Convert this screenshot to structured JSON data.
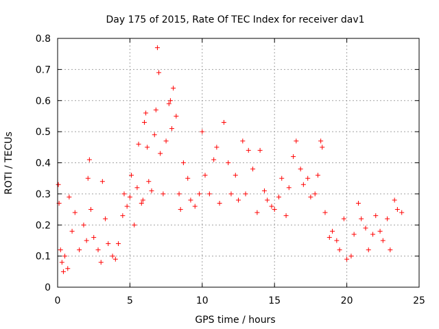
{
  "chart_data": {
    "type": "scatter",
    "title": "Day 175 of 2015, Rate Of TEC Index for receiver dav1",
    "xlabel": "GPS time / hours",
    "ylabel": "ROTI / TECUs",
    "xlim": [
      0,
      25
    ],
    "ylim": [
      0,
      0.8
    ],
    "xticks": [
      "0",
      "5",
      "10",
      "15",
      "20",
      "25"
    ],
    "yticks": [
      "0",
      "0.1",
      "0.2",
      "0.3",
      "0.4",
      "0.5",
      "0.6",
      "0.7",
      "0.8"
    ],
    "grid": true,
    "marker": "+",
    "color": "#ff0000",
    "series": [
      {
        "x": [
          0.05,
          0.1,
          0.2,
          0.3,
          0.4,
          0.5,
          0.7,
          0.8,
          1.0,
          1.2,
          1.5,
          1.8,
          2.0,
          2.1,
          2.2,
          2.3,
          2.5,
          2.8,
          3.0,
          3.1,
          3.3,
          3.5,
          3.8,
          4.0,
          4.2,
          4.5,
          4.6,
          4.8,
          5.0,
          5.1,
          5.3,
          5.5,
          5.6,
          5.8,
          5.9,
          6.0,
          6.1,
          6.2,
          6.3,
          6.5,
          6.7,
          6.8,
          6.9,
          7.0,
          7.1,
          7.3,
          7.5,
          7.7,
          7.8,
          7.9,
          8.0,
          8.2,
          8.4,
          8.5,
          8.7,
          9.0,
          9.2,
          9.5,
          9.8,
          10.0,
          10.2,
          10.5,
          10.8,
          11.0,
          11.2,
          11.5,
          11.8,
          12.0,
          12.3,
          12.5,
          12.8,
          13.0,
          13.2,
          13.5,
          13.8,
          14.0,
          14.3,
          14.5,
          14.8,
          15.0,
          15.3,
          15.5,
          15.8,
          16.0,
          16.3,
          16.5,
          16.8,
          17.0,
          17.3,
          17.5,
          17.8,
          18.0,
          18.2,
          18.3,
          18.5,
          18.8,
          19.0,
          19.3,
          19.5,
          19.8,
          20.0,
          20.3,
          20.5,
          20.8,
          21.0,
          21.3,
          21.5,
          21.8,
          22.0,
          22.3,
          22.5,
          22.8,
          23.0,
          23.3,
          23.5,
          23.8
        ],
        "y": [
          0.33,
          0.27,
          0.12,
          0.08,
          0.05,
          0.1,
          0.06,
          0.29,
          0.18,
          0.24,
          0.12,
          0.2,
          0.15,
          0.35,
          0.41,
          0.25,
          0.16,
          0.12,
          0.08,
          0.34,
          0.22,
          0.14,
          0.1,
          0.09,
          0.14,
          0.23,
          0.3,
          0.26,
          0.29,
          0.36,
          0.2,
          0.32,
          0.46,
          0.27,
          0.28,
          0.53,
          0.56,
          0.45,
          0.34,
          0.31,
          0.49,
          0.57,
          0.77,
          0.69,
          0.43,
          0.3,
          0.47,
          0.59,
          0.6,
          0.51,
          0.64,
          0.55,
          0.3,
          0.25,
          0.4,
          0.35,
          0.28,
          0.26,
          0.3,
          0.5,
          0.36,
          0.3,
          0.41,
          0.45,
          0.27,
          0.53,
          0.4,
          0.3,
          0.36,
          0.28,
          0.47,
          0.3,
          0.44,
          0.38,
          0.24,
          0.44,
          0.31,
          0.28,
          0.26,
          0.25,
          0.29,
          0.35,
          0.23,
          0.32,
          0.42,
          0.47,
          0.38,
          0.33,
          0.35,
          0.29,
          0.3,
          0.36,
          0.47,
          0.45,
          0.24,
          0.16,
          0.18,
          0.15,
          0.12,
          0.22,
          0.09,
          0.1,
          0.17,
          0.27,
          0.22,
          0.19,
          0.12,
          0.17,
          0.23,
          0.18,
          0.15,
          0.22,
          0.12,
          0.28,
          0.25,
          0.24
        ]
      }
    ]
  }
}
